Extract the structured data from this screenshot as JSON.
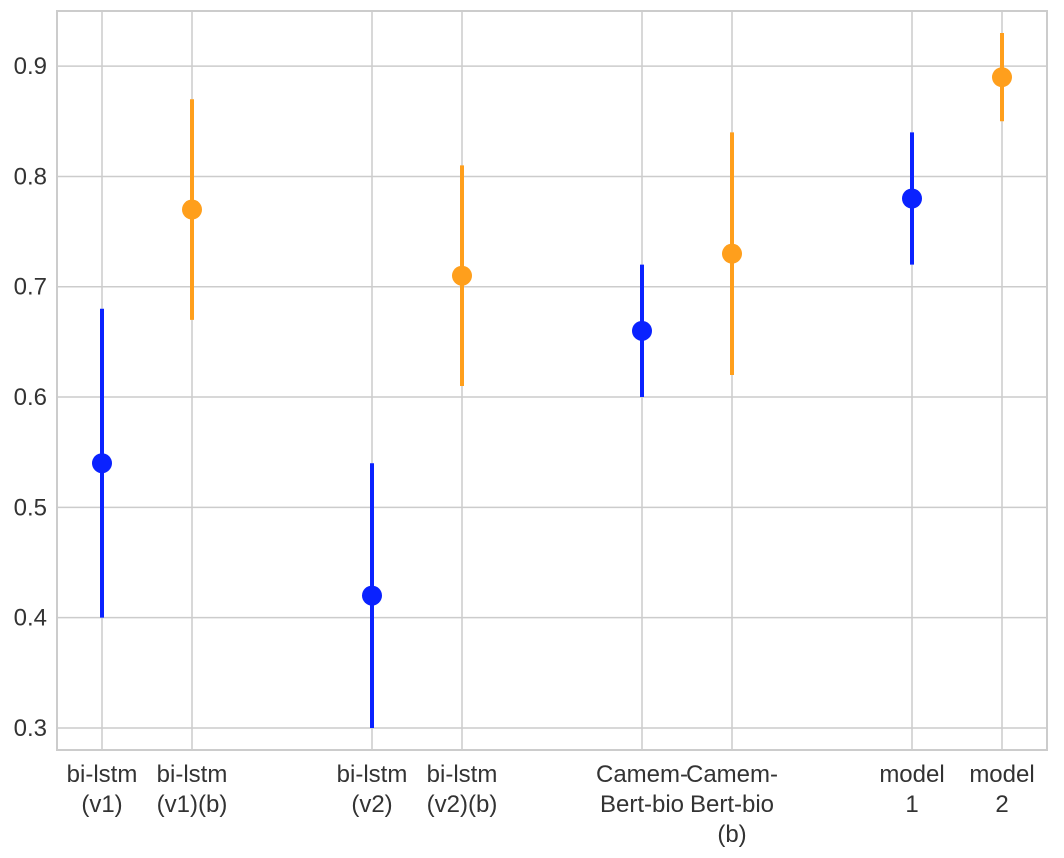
{
  "chart_data": {
    "type": "scatter",
    "title": "",
    "xlabel": "",
    "ylabel": "",
    "grid": true,
    "legend": "none",
    "ylim": [
      0.28,
      0.95
    ],
    "yticks": [
      0.3,
      0.4,
      0.5,
      0.6,
      0.7,
      0.8,
      0.9
    ],
    "ytick_labels": [
      "0.3",
      "0.4",
      "0.5",
      "0.6",
      "0.7",
      "0.8",
      "0.9"
    ],
    "categories": [
      [
        "bi-lstm",
        "(v1)"
      ],
      [
        "bi-lstm",
        "(v1)(b)"
      ],
      [
        "bi-lstm",
        "(v2)"
      ],
      [
        "bi-lstm",
        "(v2)(b)"
      ],
      [
        "Camem-",
        "Bert-bio"
      ],
      [
        "Camem-",
        "Bert-bio",
        "(b)"
      ],
      [
        "model",
        "1"
      ],
      [
        "model",
        "2"
      ]
    ],
    "x_positions": [
      0,
      1,
      3,
      4,
      6,
      7,
      9,
      10
    ],
    "xlim": [
      -0.5,
      10.5
    ],
    "points": [
      {
        "value": 0.54,
        "lower": 0.4,
        "upper": 0.68,
        "color": "#0a22ff"
      },
      {
        "value": 0.77,
        "lower": 0.67,
        "upper": 0.87,
        "color": "#ff9f1c"
      },
      {
        "value": 0.42,
        "lower": 0.3,
        "upper": 0.54,
        "color": "#0a22ff"
      },
      {
        "value": 0.71,
        "lower": 0.61,
        "upper": 0.81,
        "color": "#ff9f1c"
      },
      {
        "value": 0.66,
        "lower": 0.6,
        "upper": 0.72,
        "color": "#0a22ff"
      },
      {
        "value": 0.73,
        "lower": 0.62,
        "upper": 0.84,
        "color": "#ff9f1c"
      },
      {
        "value": 0.78,
        "lower": 0.72,
        "upper": 0.84,
        "color": "#0a22ff"
      },
      {
        "value": 0.89,
        "lower": 0.85,
        "upper": 0.93,
        "color": "#ff9f1c"
      }
    ],
    "colors": {
      "blue": "#0a22ff",
      "orange": "#ff9f1c",
      "grid": "#cccccc",
      "axis": "#cccccc",
      "text": "#333333"
    }
  }
}
